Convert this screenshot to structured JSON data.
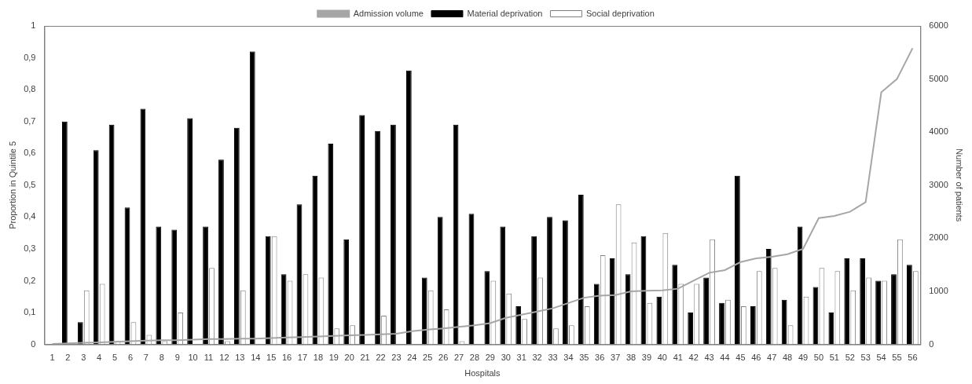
{
  "chart_data": {
    "type": "bar",
    "x_label": "Hospitals",
    "y_label": "Proportion in Quintile 5",
    "y2_label": "Number of patients",
    "categories": [
      "1",
      "2",
      "3",
      "4",
      "5",
      "6",
      "7",
      "8",
      "9",
      "10",
      "11",
      "12",
      "13",
      "14",
      "15",
      "16",
      "17",
      "18",
      "19",
      "20",
      "21",
      "22",
      "23",
      "24",
      "25",
      "26",
      "27",
      "28",
      "29",
      "30",
      "31",
      "32",
      "33",
      "34",
      "35",
      "36",
      "37",
      "38",
      "39",
      "40",
      "41",
      "42",
      "43",
      "44",
      "45",
      "46",
      "47",
      "48",
      "49",
      "50",
      "51",
      "52",
      "53",
      "54",
      "55",
      "56"
    ],
    "series": [
      {
        "name": "Material deprivation",
        "type": "bar",
        "color": "#000000",
        "values": [
          0,
          0.7,
          0.07,
          0.61,
          0.69,
          0.43,
          0.74,
          0.37,
          0.36,
          0.71,
          0.37,
          0.58,
          0.68,
          0.92,
          0.34,
          0.22,
          0.44,
          0.53,
          0.63,
          0.33,
          0.72,
          0.67,
          0.69,
          0.86,
          0.21,
          0.4,
          0.69,
          0.41,
          0.23,
          0.37,
          0.12,
          0.34,
          0.4,
          0.39,
          0.47,
          0.19,
          0.27,
          0.22,
          0.34,
          0.15,
          0.25,
          0.1,
          0.21,
          0.13,
          0.53,
          0.12,
          0.3,
          0.14,
          0.37,
          0.18,
          0.1,
          0.27,
          0.27,
          0.2,
          0.22,
          0.25
        ]
      },
      {
        "name": "Social deprivation",
        "type": "bar",
        "color": "#ffffff",
        "values": [
          0,
          0,
          0.17,
          0.19,
          0.01,
          0.07,
          0.03,
          0.01,
          0.1,
          0,
          0.24,
          0.01,
          0.17,
          0,
          0.34,
          0.2,
          0.22,
          0.21,
          0.05,
          0.06,
          0,
          0.09,
          0,
          0,
          0.17,
          0.11,
          0.01,
          0,
          0.2,
          0.16,
          0.08,
          0.21,
          0.05,
          0.06,
          0.12,
          0.28,
          0.44,
          0.32,
          0.13,
          0.35,
          0.19,
          0.19,
          0.33,
          0.14,
          0.12,
          0.23,
          0.24,
          0.06,
          0.15,
          0.24,
          0.23,
          0.17,
          0.21,
          0.2,
          0.33,
          0.23
        ]
      },
      {
        "name": "Admission volume",
        "type": "line",
        "axis": "y2",
        "color": "#a6a6a6",
        "values": [
          10,
          20,
          30,
          40,
          50,
          60,
          70,
          80,
          80,
          90,
          100,
          100,
          110,
          110,
          120,
          130,
          140,
          150,
          160,
          170,
          180,
          190,
          200,
          250,
          280,
          300,
          330,
          360,
          400,
          500,
          560,
          620,
          680,
          780,
          880,
          920,
          930,
          1000,
          1010,
          1020,
          1050,
          1200,
          1350,
          1400,
          1550,
          1620,
          1650,
          1700,
          1800,
          2380,
          2420,
          2500,
          2680,
          4750,
          5000,
          5580
        ]
      }
    ],
    "ylim": [
      0,
      1
    ],
    "yticks": [
      0,
      {
        "value": 0.1,
        "label": "0,1"
      },
      {
        "value": 0.2,
        "label": "0,2"
      },
      {
        "value": 0.3,
        "label": "0,3"
      },
      {
        "value": 0.4,
        "label": "0,4"
      },
      {
        "value": 0.5,
        "label": "0,5"
      },
      {
        "value": 0.6,
        "label": "0,6"
      },
      {
        "value": 0.7,
        "label": "0,7"
      },
      {
        "value": 0.8,
        "label": "0,8"
      },
      {
        "value": 0.9,
        "label": "0,9"
      },
      1
    ],
    "y2lim": [
      0,
      6000
    ],
    "y2ticks": [
      0,
      1000,
      2000,
      3000,
      4000,
      5000,
      6000
    ],
    "grid": false,
    "legend": "top"
  }
}
